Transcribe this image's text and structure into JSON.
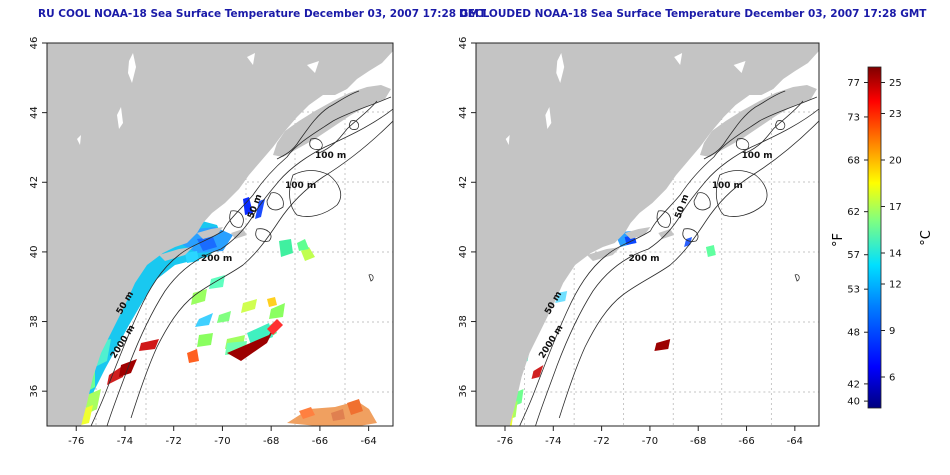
{
  "maps": [
    {
      "title": "RU COOL NOAA-18 Sea Surface Temperature December 03, 2007 17:28 GMT",
      "variant": "raw"
    },
    {
      "title": "DECLOUDED NOAA-18 Sea Surface Temperature December 03, 2007 17:28 GMT",
      "variant": "declouded"
    }
  ],
  "axes": {
    "lon_ticks": [
      "-76",
      "-74",
      "-72",
      "-70",
      "-68",
      "-66",
      "-64"
    ],
    "lat_ticks": [
      "36",
      "38",
      "40",
      "42",
      "44",
      "46"
    ],
    "lon_values": [
      -76,
      -74,
      -72,
      -70,
      -68,
      -66,
      -64
    ],
    "lat_values": [
      36,
      38,
      40,
      42,
      44,
      46
    ],
    "lon_range": [
      -77.2,
      -63.0
    ],
    "lat_range": [
      35.0,
      46.0
    ]
  },
  "contour_labels": [
    "100 m",
    "100 m",
    "50 m",
    "200 m",
    "50 m",
    "2000 m"
  ],
  "colorbar": {
    "f_label": "°F",
    "c_label": "°C",
    "f_ticks": [
      "77",
      "73",
      "68",
      "62",
      "57",
      "53",
      "48",
      "42",
      "40"
    ],
    "f_values": [
      77,
      73,
      68,
      62,
      57,
      53,
      48,
      42,
      40
    ],
    "c_ticks": [
      "25",
      "23",
      "20",
      "17",
      "14",
      "12",
      "9",
      "6"
    ],
    "c_values": [
      25,
      23,
      20,
      17,
      14,
      12,
      9,
      6
    ],
    "c_range": [
      4,
      26
    ],
    "colors": [
      "#00007f",
      "#0000ff",
      "#0080ff",
      "#00ffff",
      "#80ff80",
      "#ffff00",
      "#ff8000",
      "#ff0000",
      "#7f0000"
    ]
  },
  "colors": {
    "land": "#c4c4c4",
    "ocean": "#ffffff",
    "grid": "#b0b0b0",
    "title": "#1a1aa8"
  }
}
